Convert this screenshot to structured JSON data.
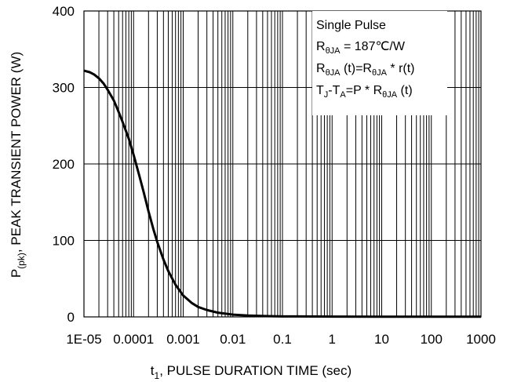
{
  "chart_data": {
    "type": "line",
    "x_scale": "log",
    "xlim": [
      1e-05,
      1000
    ],
    "ylim": [
      0,
      400
    ],
    "x_tick_labels": [
      "1E-05",
      "0.0001",
      "0.001",
      "0.01",
      "0.1",
      "1",
      "10",
      "100",
      "1000"
    ],
    "y_tick_labels": [
      "0",
      "100",
      "200",
      "300",
      "400"
    ],
    "xlabel": {
      "main": "t",
      "sub": "1",
      "rest": ", PULSE DURATION TIME (sec)"
    },
    "ylabel": {
      "main": "P",
      "sub": "(pk)",
      "rest": ", PEAK TRANSIENT POWER (W)"
    },
    "grid": true,
    "legend_placement": "top-right",
    "annotation": {
      "line1": "Single Pulse",
      "line2": {
        "r": "R",
        "sub": "θJA",
        "rest": " = 187℃/W"
      },
      "line3": {
        "r1": "R",
        "sub1": "θJA",
        "mid": " (t)=R",
        "sub2": "θJA",
        "rest": " * r(t)"
      },
      "line4": {
        "t1": "T",
        "sub1": "J",
        "mid1": "-T",
        "sub2": "A",
        "mid2": "=P * R",
        "sub3": "θJA",
        "rest": " (t)"
      }
    },
    "series": [
      {
        "color": "#000000",
        "points": [
          [
            1e-05,
            322
          ],
          [
            1.3e-05,
            320
          ],
          [
            1.6e-05,
            317
          ],
          [
            2e-05,
            312
          ],
          [
            2.5e-05,
            305
          ],
          [
            3e-05,
            297
          ],
          [
            4e-05,
            283
          ],
          [
            5e-05,
            268
          ],
          [
            6e-05,
            255
          ],
          [
            8e-05,
            233
          ],
          [
            0.0001,
            212
          ],
          [
            0.00013,
            185
          ],
          [
            0.00016,
            163
          ],
          [
            0.0002,
            138
          ],
          [
            0.00025,
            115
          ],
          [
            0.0003,
            98
          ],
          [
            0.0004,
            75
          ],
          [
            0.0005,
            60
          ],
          [
            0.0007,
            42
          ],
          [
            0.001,
            28
          ],
          [
            0.0015,
            18
          ],
          [
            0.002,
            13
          ],
          [
            0.003,
            9
          ],
          [
            0.005,
            5.5
          ],
          [
            0.01,
            3
          ],
          [
            0.02,
            1.8
          ],
          [
            0.05,
            1
          ],
          [
            0.1,
            0.7
          ],
          [
            1,
            0.4
          ],
          [
            10,
            0.25
          ],
          [
            100,
            0.2
          ],
          [
            1000,
            0.2
          ]
        ]
      }
    ]
  }
}
